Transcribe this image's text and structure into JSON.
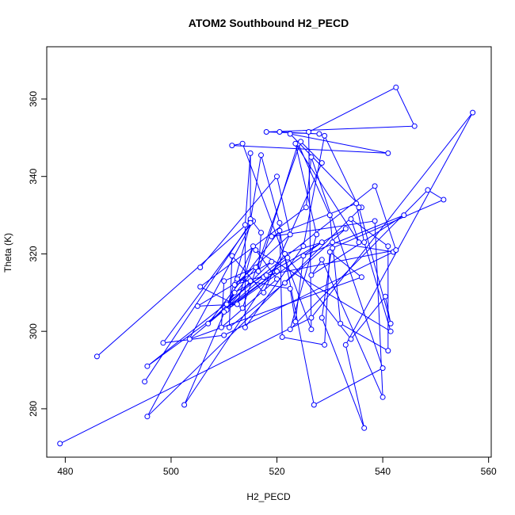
{
  "chart_data": {
    "type": "scatter",
    "title": "ATOM2 Southbound H2_PECD",
    "xlabel": "H2_PECD",
    "ylabel": "Theta (K)",
    "xlim": [
      476.5,
      560.5
    ],
    "ylim": [
      267.5,
      373.5
    ],
    "xticks": [
      480,
      500,
      520,
      540,
      560
    ],
    "yticks": [
      280,
      300,
      320,
      340,
      360
    ],
    "grid": false,
    "legend": "none",
    "series_color": "#0000ff",
    "series": [
      {
        "mode": "lines+markers",
        "points": [
          [
            479.0,
            271.0
          ],
          [
            526.5,
            303.5
          ],
          [
            557.0,
            356.5
          ],
          [
            533.0,
            296.5
          ],
          [
            536.5,
            275.0
          ],
          [
            528.5,
            303.5
          ],
          [
            530.5,
            323.0
          ],
          [
            542.0,
            320.5
          ],
          [
            510.0,
            299.0
          ],
          [
            498.5,
            297.0
          ],
          [
            515.5,
            328.5
          ],
          [
            495.5,
            278.0
          ],
          [
            536.0,
            332.0
          ],
          [
            522.5,
            351.0
          ],
          [
            541.0,
            346.0
          ],
          [
            511.5,
            348.0
          ],
          [
            513.5,
            348.5
          ],
          [
            526.5,
            300.5
          ],
          [
            526.0,
            351.5
          ],
          [
            542.5,
            363.0
          ],
          [
            546.0,
            353.0
          ],
          [
            518.0,
            351.5
          ],
          [
            528.0,
            351.0
          ],
          [
            520.5,
            351.5
          ]
        ]
      },
      {
        "mode": "lines+markers",
        "points": [
          [
            486.0,
            293.5
          ],
          [
            515.0,
            328.5
          ],
          [
            517.0,
            345.5
          ],
          [
            520.5,
            328.0
          ],
          [
            521.0,
            298.5
          ],
          [
            529.0,
            296.5
          ],
          [
            530.0,
            320.5
          ],
          [
            536.0,
            314.0
          ],
          [
            503.5,
            298.0
          ],
          [
            517.5,
            314.0
          ],
          [
            522.0,
            319.0
          ],
          [
            534.0,
            298.0
          ],
          [
            540.5,
            309.0
          ],
          [
            541.5,
            302.0
          ],
          [
            535.5,
            332.0
          ],
          [
            529.0,
            350.5
          ],
          [
            525.0,
            322.0
          ],
          [
            514.0,
            301.0
          ],
          [
            514.0,
            327.5
          ],
          [
            515.0,
            346.0
          ],
          [
            515.0,
            329.0
          ],
          [
            517.0,
            325.5
          ],
          [
            516.5,
            315.5
          ],
          [
            524.0,
            348.5
          ],
          [
            530.0,
            330.0
          ],
          [
            532.0,
            302.0
          ],
          [
            541.0,
            295.0
          ],
          [
            541.0,
            322.0
          ],
          [
            534.0,
            329.0
          ],
          [
            535.5,
            323.0
          ],
          [
            523.5,
            348.5
          ],
          [
            527.5,
            325.0
          ],
          [
            522.5,
            300.5
          ],
          [
            548.5,
            336.5
          ],
          [
            551.5,
            334.0
          ],
          [
            530.5,
            321.5
          ]
        ]
      },
      {
        "mode": "lines+markers",
        "points": [
          [
            495.0,
            287.0
          ],
          [
            515.0,
            328.0
          ],
          [
            510.5,
            305.5
          ],
          [
            528.5,
            323.0
          ],
          [
            521.5,
            320.0
          ],
          [
            502.5,
            281.0
          ],
          [
            515.5,
            322.0
          ],
          [
            512.5,
            307.0
          ],
          [
            505.0,
            306.5
          ],
          [
            519.0,
            318.0
          ],
          [
            507.0,
            302.0
          ],
          [
            520.5,
            326.0
          ],
          [
            527.0,
            281.0
          ],
          [
            540.0,
            290.5
          ],
          [
            526.5,
            345.0
          ],
          [
            525.5,
            332.0
          ],
          [
            505.5,
            311.5
          ],
          [
            513.5,
            306.0
          ],
          [
            524.5,
            349.0
          ],
          [
            528.5,
            343.5
          ],
          [
            517.5,
            310.0
          ],
          [
            511.5,
            319.5
          ],
          [
            511.0,
            301.0
          ],
          [
            521.5,
            312.5
          ],
          [
            533.0,
            326.5
          ],
          [
            512.0,
            310.0
          ],
          [
            510.5,
            307.0
          ],
          [
            516.0,
            316.5
          ],
          [
            510.0,
            313.0
          ],
          [
            509.5,
            301.0
          ],
          [
            520.0,
            313.5
          ],
          [
            516.0,
            321.0
          ],
          [
            541.5,
            300.0
          ],
          [
            536.5,
            323.0
          ],
          [
            535.0,
            333.0
          ],
          [
            519.0,
            324.5
          ],
          [
            538.5,
            328.5
          ],
          [
            540.0,
            283.0
          ],
          [
            528.5,
            318.5
          ],
          [
            526.5,
            314.5
          ],
          [
            544.0,
            330.0
          ],
          [
            525.0,
            319.5
          ],
          [
            523.5,
            302.5
          ],
          [
            522.5,
            311.0
          ],
          [
            512.5,
            313.5
          ],
          [
            515.0,
            313.0
          ],
          [
            510.0,
            305.0
          ],
          [
            520.0,
            315.5
          ],
          [
            495.5,
            291.0
          ],
          [
            538.5,
            337.5
          ],
          [
            542.5,
            321.0
          ],
          [
            518.0,
            314.5
          ],
          [
            512.0,
            312.0
          ],
          [
            522.5,
            325.0
          ],
          [
            520.0,
            340.0
          ],
          [
            505.5,
            316.5
          ]
        ]
      }
    ]
  }
}
